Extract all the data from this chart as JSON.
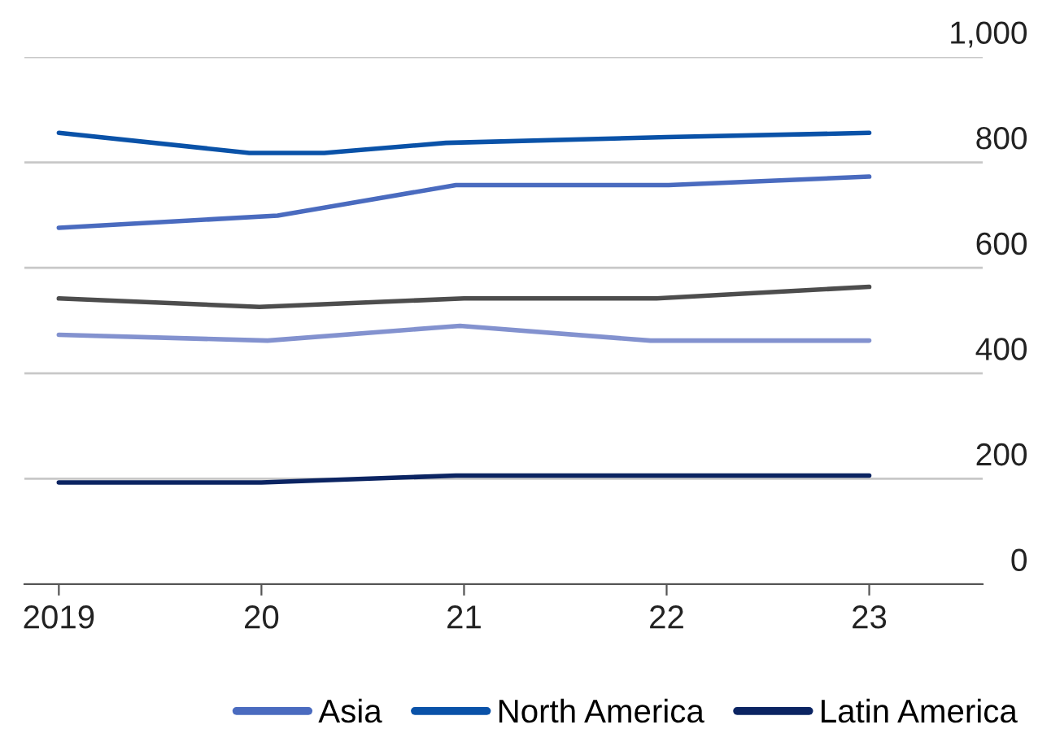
{
  "chart_data": {
    "type": "line",
    "xlim": [
      2018.83,
      2023.56
    ],
    "xticks": [
      {
        "value": 2019,
        "label": "2019"
      },
      {
        "value": 2020,
        "label": "20"
      },
      {
        "value": 2021,
        "label": "21"
      },
      {
        "value": 2022,
        "label": "22"
      },
      {
        "value": 2023,
        "label": "23"
      }
    ],
    "ylim": [
      0,
      1000
    ],
    "yticks": [
      0,
      200,
      400,
      600,
      800,
      {
        "value": 1000,
        "label": "1,000"
      }
    ],
    "grid": "y",
    "legend": "bottom",
    "marker": "none",
    "line_style": "solid",
    "series": [
      {
        "name": "Asia",
        "color": "#4a6bbf",
        "x": [
          2019,
          2020.08,
          2020.96,
          2022.01,
          2023
        ],
        "values": [
          676,
          699,
          757,
          757,
          773
        ]
      },
      {
        "name": "North America",
        "color": "#0a52a8",
        "x": [
          2019,
          2019.94,
          2020.31,
          2020.91,
          2022,
          2023
        ],
        "values": [
          856,
          818,
          818,
          837,
          848,
          856
        ]
      },
      {
        "name": "Latin America",
        "color": "#0b2462",
        "x": [
          2019,
          2020,
          2020.96,
          2022,
          2023
        ],
        "values": [
          193,
          193,
          206,
          206,
          206
        ]
      },
      {
        "color": "#4d4d4d",
        "x": [
          2019,
          2019.99,
          2021,
          2021.95,
          2023
        ],
        "values": [
          542,
          526,
          542,
          542,
          564
        ]
      },
      {
        "color": "#8392cf",
        "x": [
          2019,
          2020.03,
          2020.98,
          2021.92,
          2023
        ],
        "values": [
          473,
          462,
          490,
          462,
          462
        ]
      }
    ]
  }
}
